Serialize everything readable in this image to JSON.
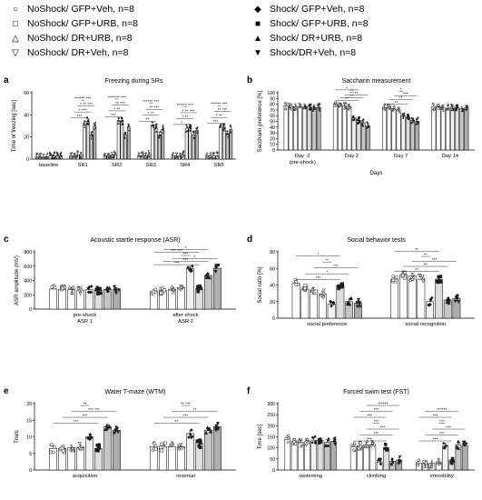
{
  "legend": [
    {
      "label": "NoShock/ GFP+Veh,  n=8",
      "symbol": "○",
      "fill": "#ffffff"
    },
    {
      "label": "NoShock/ GFP+URB,  n=8",
      "symbol": "□",
      "fill": "#ffffff"
    },
    {
      "label": "NoShock/ DR+URB, n=8",
      "symbol": "△",
      "fill": "#ffffff"
    },
    {
      "label": "NoShock/ DR+Veh, n=8",
      "symbol": "▽",
      "fill": "#ffffff"
    },
    {
      "label": "Shock/ GFP+Veh, n=8",
      "symbol": "◆",
      "fill": "#1a1a1a"
    },
    {
      "label": "Shock/ GFP+URB, n=8",
      "symbol": "■",
      "fill": "#1a1a1a"
    },
    {
      "label": "Shock/ DR+URB, n=8",
      "symbol": "▲",
      "fill": "#1a1a1a"
    },
    {
      "label": "Shock/DR+Veh, n=8",
      "symbol": "▼",
      "fill": "#1a1a1a"
    }
  ],
  "colors": {
    "noshock_bar": "#ffffff",
    "shock_bars": [
      "#f2f2f2",
      "#dddddd",
      "#c6c6c6",
      "#adadad"
    ],
    "axis": "#000000",
    "marker_dark": "#1a1a1a"
  },
  "chart_data": [
    {
      "panel": "a",
      "type": "bar",
      "title": "Freezing during SRs",
      "ylabel": "Time of freezing [sec]",
      "xlabel": "",
      "ylim": [
        0,
        60
      ],
      "yticks": [
        0,
        20,
        40,
        60
      ],
      "categories": [
        "baseline",
        "SR1",
        "SR2",
        "SR3",
        "SR4",
        "SR5"
      ],
      "values": [
        [
          2,
          2,
          2,
          2,
          3,
          3,
          3,
          3
        ],
        [
          3,
          3,
          4,
          4,
          32,
          34,
          22,
          30
        ],
        [
          3,
          3,
          4,
          4,
          35,
          34,
          22,
          29
        ],
        [
          3,
          3,
          3,
          4,
          31,
          28,
          22,
          27
        ],
        [
          3,
          3,
          3,
          4,
          28,
          28,
          22,
          26
        ],
        [
          3,
          3,
          3,
          3,
          29,
          29,
          23,
          27
        ]
      ],
      "significance": [
        {
          "group": 1,
          "text": "***"
        },
        {
          "group": 1,
          "text": "* ***"
        },
        {
          "group": 1,
          "text": "* ** ***"
        },
        {
          "group": 1,
          "text": "****** ***"
        },
        {
          "group": 2,
          "text": "***"
        },
        {
          "group": 2,
          "text": "* **"
        },
        {
          "group": 2,
          "text": "** ***"
        },
        {
          "group": 2,
          "text": "******* ***"
        },
        {
          "group": 3,
          "text": "**"
        },
        {
          "group": 3,
          "text": "* **"
        },
        {
          "group": 3,
          "text": "** ***"
        },
        {
          "group": 3,
          "text": "****** ***"
        },
        {
          "group": 4,
          "text": "*"
        },
        {
          "group": 4,
          "text": "* **"
        },
        {
          "group": 4,
          "text": "* ** ***"
        },
        {
          "group": 4,
          "text": "****** ***"
        },
        {
          "group": 5,
          "text": "***"
        },
        {
          "group": 5,
          "text": "* **"
        },
        {
          "group": 5,
          "text": "** ***"
        },
        {
          "group": 5,
          "text": "****** ***"
        }
      ]
    },
    {
      "panel": "b",
      "type": "bar",
      "title": "Saccharin measurement",
      "ylabel": "Saccharin preference [%]",
      "xlabel": "Days",
      "ylim": [
        0,
        100
      ],
      "yticks": [
        0,
        10,
        20,
        30,
        40,
        50,
        60,
        70,
        80,
        90,
        100
      ],
      "categories": [
        "Day -2",
        "Day 2",
        "Day 7",
        "Day 14"
      ],
      "category_sublabels": [
        "(pre-shock)",
        "",
        "",
        ""
      ],
      "values": [
        [
          77,
          76,
          76,
          75,
          76,
          76,
          74,
          74
        ],
        [
          80,
          78,
          77,
          76,
          56,
          52,
          48,
          42
        ],
        [
          74,
          74,
          72,
          70,
          60,
          57,
          52,
          50
        ],
        [
          76,
          76,
          74,
          73,
          75,
          74,
          72,
          74
        ]
      ],
      "significance": [
        {
          "group": 1,
          "text": "**"
        },
        {
          "group": 1,
          "text": "**"
        },
        {
          "group": 1,
          "text": "**"
        },
        {
          "group": 1,
          "text": "**"
        },
        {
          "group": 1,
          "text": "*"
        },
        {
          "group": 2,
          "text": "**"
        },
        {
          "group": 2,
          "text": "**"
        },
        {
          "group": 2,
          "text": "***"
        },
        {
          "group": 2,
          "text": "*"
        }
      ]
    },
    {
      "panel": "c",
      "type": "bar",
      "title": "Acoustic startle response (ASR)",
      "ylabel": "ASR amplitude (mV)",
      "xlabel": "",
      "ylim": [
        0,
        800
      ],
      "yticks": [
        0,
        200,
        400,
        600,
        800
      ],
      "categories": [
        "pre-shock",
        "after shock"
      ],
      "category_sublabels": [
        "ASR 1",
        "ASR 2"
      ],
      "values": [
        [
          280,
          275,
          270,
          265,
          270,
          260,
          275,
          270
        ],
        [
          245,
          260,
          275,
          300,
          565,
          285,
          470,
          570
        ]
      ],
      "significance": [
        {
          "group": 1,
          "text": "***"
        },
        {
          "group": 1,
          "text": "***"
        },
        {
          "group": 1,
          "text": "*"
        },
        {
          "group": 1,
          "text": "***"
        },
        {
          "group": 1,
          "text": "*** ***"
        },
        {
          "group": 1,
          "text": "*"
        }
      ]
    },
    {
      "panel": "d",
      "type": "bar",
      "title": "Social behavior tests",
      "ylabel": "Social ratio [%]",
      "xlabel": "",
      "ylim": [
        0,
        80
      ],
      "yticks": [
        0,
        20,
        40,
        60,
        80
      ],
      "categories": [
        "social preference",
        "social recognition"
      ],
      "values": [
        [
          42,
          35,
          34,
          29,
          17,
          39,
          20,
          18
        ],
        [
          47,
          52,
          51,
          47,
          20,
          47,
          22,
          24
        ]
      ],
      "significance": [
        {
          "group": 0,
          "text": "***"
        },
        {
          "group": 0,
          "text": "*"
        },
        {
          "group": 0,
          "text": "***"
        },
        {
          "group": 0,
          "text": "**"
        },
        {
          "group": 0,
          "text": "*"
        },
        {
          "group": 1,
          "text": "**"
        },
        {
          "group": 1,
          "text": "**"
        },
        {
          "group": 1,
          "text": "***"
        },
        {
          "group": 1,
          "text": "**"
        },
        {
          "group": 1,
          "text": "**"
        }
      ]
    },
    {
      "panel": "e",
      "type": "bar",
      "title": "Water T-maze (WTM)",
      "ylabel": "Trials",
      "xlabel": "",
      "ylim": [
        0,
        20
      ],
      "yticks": [
        0,
        5,
        10,
        15,
        20
      ],
      "categories": [
        "acquisition",
        "reversal"
      ],
      "values": [
        [
          6.5,
          6.5,
          6.7,
          6.8,
          10,
          6.5,
          13,
          12
        ],
        [
          7,
          7,
          7,
          7,
          11,
          8,
          12,
          13
        ]
      ],
      "significance": [
        {
          "group": 0,
          "text": "***"
        },
        {
          "group": 0,
          "text": "***"
        },
        {
          "group": 0,
          "text": "*** ***"
        },
        {
          "group": 0,
          "text": "**"
        },
        {
          "group": 1,
          "text": "**"
        },
        {
          "group": 1,
          "text": "***"
        },
        {
          "group": 1,
          "text": "**"
        },
        {
          "group": 1,
          "text": "** ***"
        }
      ]
    },
    {
      "panel": "f",
      "type": "bar",
      "title": "Forced swim test (FST)",
      "ylabel": "Time [sec]",
      "xlabel": "",
      "ylim": [
        0,
        300
      ],
      "yticks": [
        0,
        50,
        100,
        150,
        200,
        250,
        300
      ],
      "categories": [
        "swimming",
        "climbing",
        "immobility"
      ],
      "values": [
        [
          140,
          130,
          125,
          128,
          135,
          135,
          125,
          130
        ],
        [
          105,
          110,
          115,
          115,
          35,
          100,
          40,
          45
        ],
        [
          30,
          30,
          30,
          35,
          110,
          45,
          115,
          110
        ]
      ],
      "significance": [
        {
          "group": 1,
          "text": "***"
        },
        {
          "group": 1,
          "text": "***"
        },
        {
          "group": 1,
          "text": "***"
        },
        {
          "group": 1,
          "text": "***"
        },
        {
          "group": 1,
          "text": "***"
        },
        {
          "group": 1,
          "text": "***"
        },
        {
          "group": 1,
          "text": "******"
        },
        {
          "group": 2,
          "text": "***"
        },
        {
          "group": 2,
          "text": "***"
        },
        {
          "group": 2,
          "text": "***"
        },
        {
          "group": 2,
          "text": "***"
        },
        {
          "group": 2,
          "text": "***"
        },
        {
          "group": 2,
          "text": "******"
        }
      ]
    }
  ]
}
